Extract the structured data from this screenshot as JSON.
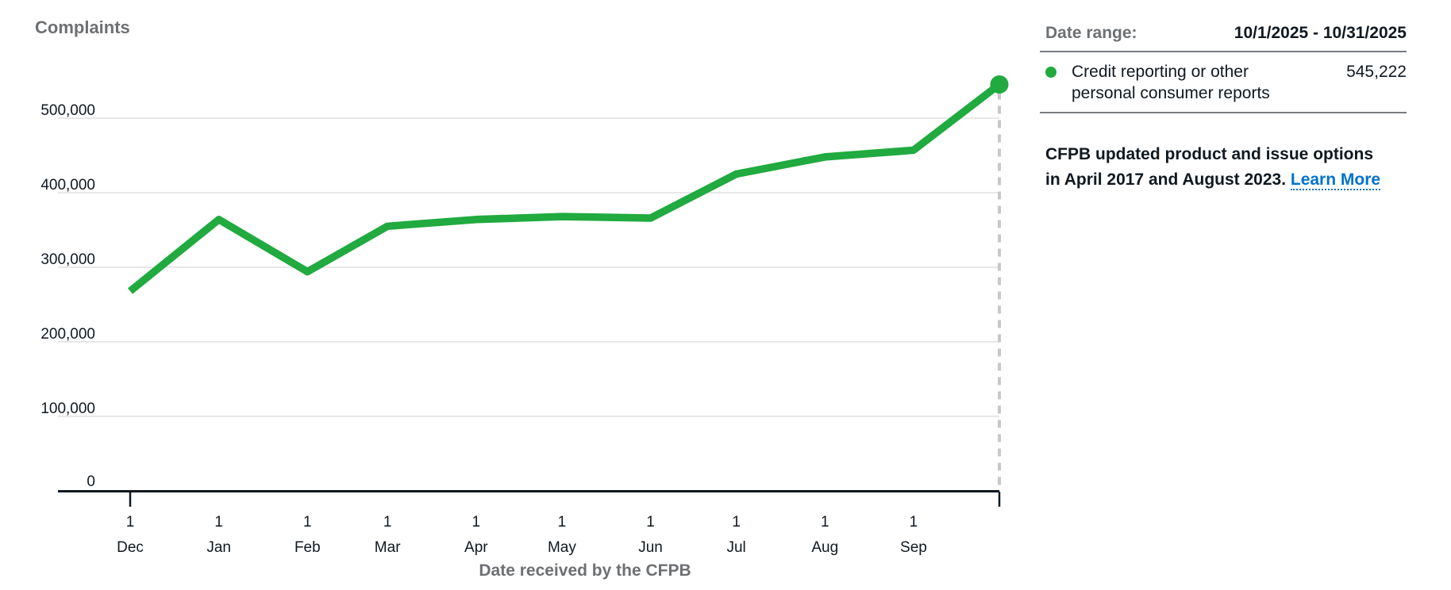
{
  "colors": {
    "accent_green": "#20aa3f",
    "link_blue": "#0072ce",
    "text_dark": "#101820",
    "text_gray": "#6d7073",
    "gridline": "#e8e8e9",
    "axis": "#101820",
    "dashed_marker": "#c7c8c9",
    "separator": "#797c7f"
  },
  "chart_data": {
    "type": "line",
    "title": "Complaints",
    "xlabel": "Date received by the CFPB",
    "ylim": [
      0,
      550000
    ],
    "grid": true,
    "legend_position": "right-panel",
    "yticks": [
      {
        "value": 0,
        "label": "0"
      },
      {
        "value": 100000,
        "label": "100,000"
      },
      {
        "value": 200000,
        "label": "200,000"
      },
      {
        "value": 300000,
        "label": "300,000"
      },
      {
        "value": 400000,
        "label": "400,000"
      },
      {
        "value": 500000,
        "label": "500,000"
      }
    ],
    "xticks": [
      {
        "date": "2024-12-01",
        "day": "1",
        "month": "Dec"
      },
      {
        "date": "2025-01-01",
        "day": "1",
        "month": "Jan"
      },
      {
        "date": "2025-02-01",
        "day": "1",
        "month": "Feb"
      },
      {
        "date": "2025-03-01",
        "day": "1",
        "month": "Mar"
      },
      {
        "date": "2025-04-01",
        "day": "1",
        "month": "Apr"
      },
      {
        "date": "2025-05-01",
        "day": "1",
        "month": "May"
      },
      {
        "date": "2025-06-01",
        "day": "1",
        "month": "Jun"
      },
      {
        "date": "2025-07-01",
        "day": "1",
        "month": "Jul"
      },
      {
        "date": "2025-08-01",
        "day": "1",
        "month": "Aug"
      },
      {
        "date": "2025-09-01",
        "day": "1",
        "month": "Sep"
      }
    ],
    "tick_marks_at": [
      "2024-12-01",
      "2025-10-01"
    ],
    "series": [
      {
        "name": "Credit reporting or other personal consumer reports",
        "color": "#20aa3f",
        "points": [
          {
            "date": "2024-12-01",
            "month": "Dec",
            "value": 268000
          },
          {
            "date": "2025-01-01",
            "month": "Jan",
            "value": 364000
          },
          {
            "date": "2025-02-01",
            "month": "Feb",
            "value": 294000
          },
          {
            "date": "2025-03-01",
            "month": "Mar",
            "value": 355000
          },
          {
            "date": "2025-04-01",
            "month": "Apr",
            "value": 364000
          },
          {
            "date": "2025-05-01",
            "month": "May",
            "value": 368000
          },
          {
            "date": "2025-06-01",
            "month": "Jun",
            "value": 366000
          },
          {
            "date": "2025-07-01",
            "month": "Jul",
            "value": 425000
          },
          {
            "date": "2025-08-01",
            "month": "Aug",
            "value": 448000
          },
          {
            "date": "2025-09-01",
            "month": "Sep",
            "value": 457000
          },
          {
            "date": "2025-10-01",
            "month": "Oct",
            "value": 545222
          }
        ]
      }
    ]
  },
  "panel": {
    "date_range_label": "Date range:",
    "date_range_value": "10/1/2025 - 10/31/2025",
    "legend": {
      "name": "Credit reporting or other personal consumer reports",
      "value": "545,222"
    },
    "note_line1": "CFPB updated product and issue options",
    "note_line2": "in April 2017 and August 2023. ",
    "learn_more_label": "Learn More"
  }
}
